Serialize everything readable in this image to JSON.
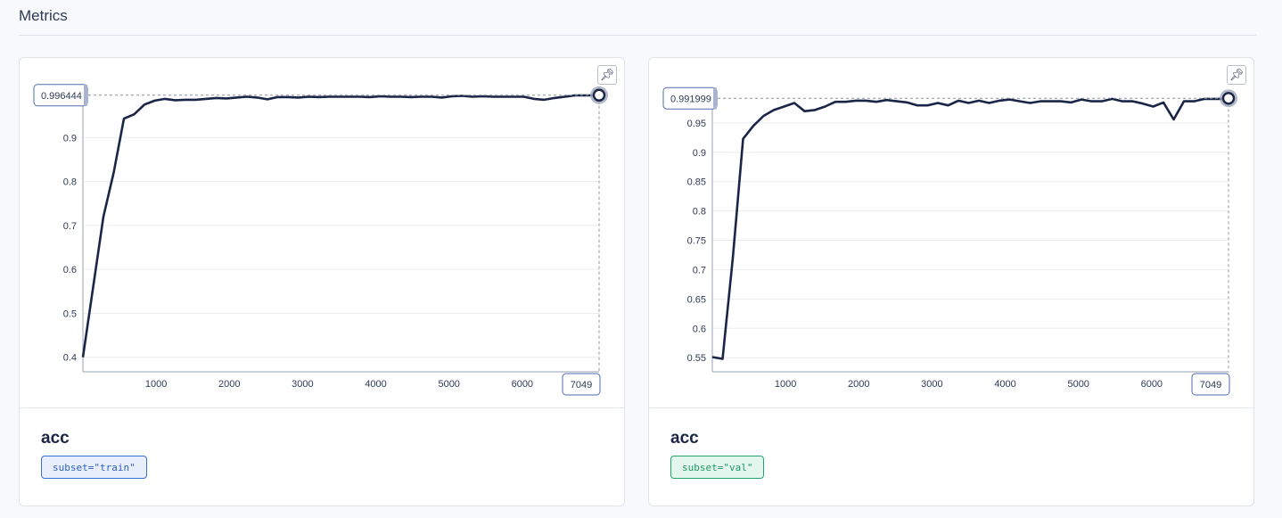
{
  "page": {
    "title": "Metrics"
  },
  "colors": {
    "line": "#1a2548",
    "grid": "#eaecf0",
    "axis": "#9aa2b0",
    "train_badge_bg": "#e8effb",
    "train_badge_border": "#3c6fd1",
    "train_badge_text": "#2f5fbf",
    "val_badge_bg": "#e3f7ee",
    "val_badge_border": "#24a46c",
    "val_badge_text": "#1d9862"
  },
  "cards": [
    {
      "metric": "acc",
      "badge": "subset=\"train\"",
      "pin_icon": "pin-icon",
      "cursor": {
        "x_label": "7049",
        "y_label": "0.996444"
      }
    },
    {
      "metric": "acc",
      "badge": "subset=\"val\"",
      "pin_icon": "pin-icon",
      "cursor": {
        "x_label": "7049",
        "y_label": "0.991999"
      }
    }
  ],
  "chart_data": [
    {
      "type": "line",
      "title": "",
      "xlabel": "",
      "ylabel": "",
      "xlim": [
        0,
        7049
      ],
      "ylim": [
        0.367,
        1.0
      ],
      "x_ticks": [
        1000,
        2000,
        3000,
        4000,
        5000,
        6000
      ],
      "y_ticks": [
        0.4,
        0.5,
        0.6,
        0.7,
        0.8,
        0.9
      ],
      "grid": true,
      "series": [
        {
          "x": [
            0,
            140,
            280,
            420,
            560,
            700,
            840,
            980,
            1120,
            1260,
            1400,
            1540,
            1680,
            1820,
            1960,
            2100,
            2240,
            2380,
            2520,
            2660,
            2800,
            2940,
            3080,
            3220,
            3360,
            3500,
            3640,
            3780,
            3920,
            4060,
            4200,
            4340,
            4480,
            4620,
            4760,
            4900,
            5040,
            5180,
            5320,
            5460,
            5600,
            5740,
            5880,
            6020,
            6160,
            6300,
            6440,
            6580,
            6720,
            6860,
            7000,
            7049
          ],
          "y": [
            0.4,
            0.56,
            0.72,
            0.82,
            0.943,
            0.953,
            0.975,
            0.984,
            0.988,
            0.985,
            0.986,
            0.986,
            0.988,
            0.99,
            0.989,
            0.991,
            0.993,
            0.991,
            0.987,
            0.992,
            0.992,
            0.991,
            0.993,
            0.992,
            0.993,
            0.993,
            0.993,
            0.993,
            0.992,
            0.994,
            0.993,
            0.993,
            0.992,
            0.993,
            0.993,
            0.991,
            0.994,
            0.995,
            0.993,
            0.994,
            0.993,
            0.993,
            0.993,
            0.993,
            0.988,
            0.986,
            0.99,
            0.993,
            0.996,
            0.996,
            0.996,
            0.996444
          ]
        }
      ]
    },
    {
      "type": "line",
      "title": "",
      "xlabel": "",
      "ylabel": "",
      "xlim": [
        0,
        7049
      ],
      "ylim": [
        0.526,
        1.0
      ],
      "x_ticks": [
        1000,
        2000,
        3000,
        4000,
        5000,
        6000
      ],
      "y_ticks": [
        0.55,
        0.6,
        0.65,
        0.7,
        0.75,
        0.8,
        0.85,
        0.9,
        0.95
      ],
      "grid": true,
      "series": [
        {
          "x": [
            0,
            140,
            280,
            420,
            560,
            700,
            840,
            980,
            1120,
            1260,
            1400,
            1540,
            1680,
            1820,
            1960,
            2100,
            2240,
            2380,
            2520,
            2660,
            2800,
            2940,
            3080,
            3220,
            3360,
            3500,
            3640,
            3780,
            3920,
            4060,
            4200,
            4340,
            4480,
            4620,
            4760,
            4900,
            5040,
            5180,
            5320,
            5460,
            5600,
            5740,
            5880,
            6020,
            6160,
            6300,
            6440,
            6580,
            6720,
            6860,
            7000,
            7049
          ],
          "y": [
            0.551,
            0.548,
            0.72,
            0.923,
            0.945,
            0.962,
            0.972,
            0.978,
            0.984,
            0.97,
            0.972,
            0.978,
            0.986,
            0.986,
            0.988,
            0.988,
            0.986,
            0.989,
            0.987,
            0.985,
            0.98,
            0.98,
            0.984,
            0.98,
            0.988,
            0.984,
            0.988,
            0.984,
            0.988,
            0.99,
            0.987,
            0.984,
            0.987,
            0.987,
            0.987,
            0.985,
            0.99,
            0.987,
            0.987,
            0.991,
            0.987,
            0.987,
            0.983,
            0.978,
            0.985,
            0.956,
            0.987,
            0.987,
            0.991,
            0.991,
            0.991,
            0.991999
          ]
        }
      ]
    }
  ]
}
